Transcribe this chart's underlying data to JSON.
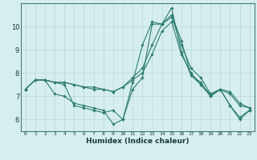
{
  "title": "",
  "xlabel": "Humidex (Indice chaleur)",
  "background_color": "#d6eeee",
  "line_color": "#2e7d72",
  "grid_color": "#b8d8d8",
  "xlim": [
    -0.5,
    23.5
  ],
  "ylim": [
    5.5,
    11.0
  ],
  "yticks": [
    6,
    7,
    8,
    9,
    10
  ],
  "xticks": [
    0,
    1,
    2,
    3,
    4,
    5,
    6,
    7,
    8,
    9,
    10,
    11,
    12,
    13,
    14,
    15,
    16,
    17,
    18,
    19,
    20,
    21,
    22,
    23
  ],
  "series": [
    [
      7.3,
      7.7,
      7.7,
      7.6,
      7.6,
      7.5,
      7.4,
      7.4,
      7.3,
      7.2,
      7.4,
      7.8,
      8.2,
      9.2,
      10.1,
      10.4,
      9.2,
      8.2,
      7.8,
      7.1,
      7.3,
      7.2,
      6.7,
      6.5
    ],
    [
      7.3,
      7.7,
      7.7,
      7.1,
      7.0,
      6.7,
      6.6,
      6.5,
      6.4,
      5.8,
      6.0,
      7.3,
      7.8,
      10.1,
      10.1,
      10.8,
      8.9,
      7.9,
      7.6,
      7.0,
      7.3,
      6.6,
      6.1,
      6.4
    ],
    [
      7.3,
      7.7,
      7.7,
      7.6,
      7.5,
      6.6,
      6.5,
      6.4,
      6.3,
      6.4,
      6.0,
      7.6,
      9.2,
      10.2,
      10.1,
      10.5,
      9.4,
      7.9,
      7.5,
      7.0,
      7.3,
      6.6,
      6.0,
      6.4
    ],
    [
      7.3,
      7.7,
      7.7,
      7.6,
      7.6,
      7.5,
      7.4,
      7.3,
      7.3,
      7.2,
      7.4,
      7.7,
      8.0,
      8.8,
      9.8,
      10.2,
      8.8,
      8.0,
      7.5,
      7.1,
      7.3,
      7.1,
      6.6,
      6.5
    ]
  ]
}
